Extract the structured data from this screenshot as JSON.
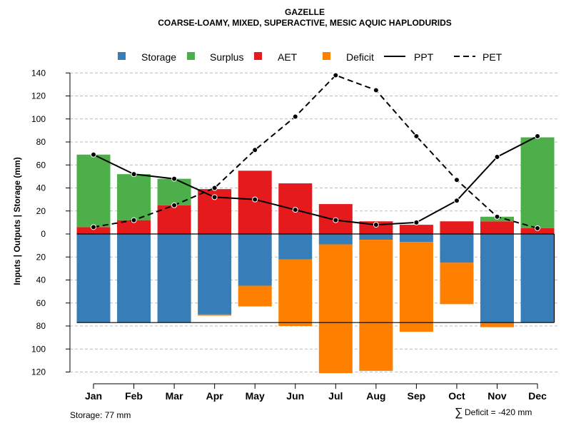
{
  "chart_data": {
    "type": "bar",
    "title": "GAZELLE",
    "subtitle": "COARSE-LOAMY, MIXED, SUPERACTIVE, MESIC AQUIC HAPLODURIDS",
    "ylabel": "Inputs | Outputs | Storage    (mm)",
    "ylim": [
      -120,
      140
    ],
    "yticks": [
      140,
      120,
      100,
      80,
      60,
      40,
      20,
      0,
      -20,
      -40,
      -60,
      -80,
      -100,
      -120
    ],
    "ytick_labels": [
      "140",
      "120",
      "100",
      "80",
      "60",
      "40",
      "20",
      "0",
      "20",
      "40",
      "60",
      "80",
      "100",
      "120"
    ],
    "categories": [
      "Jan",
      "Feb",
      "Mar",
      "Apr",
      "May",
      "Jun",
      "Jul",
      "Aug",
      "Sep",
      "Oct",
      "Nov",
      "Dec"
    ],
    "storage_capacity": 77,
    "series": [
      {
        "name": "Storage",
        "color": "#377EB8",
        "values": [
          77,
          77,
          77,
          70,
          45,
          22,
          9,
          5,
          7,
          25,
          77,
          77
        ]
      },
      {
        "name": "Surplus",
        "color": "#4DAF4A",
        "values": [
          63,
          40,
          23,
          0,
          0,
          0,
          0,
          0,
          0,
          0,
          4,
          79
        ]
      },
      {
        "name": "AET",
        "color": "#E41A1C",
        "values": [
          6,
          12,
          25,
          39,
          55,
          44,
          26,
          11,
          8,
          11,
          11,
          5
        ]
      },
      {
        "name": "Deficit",
        "color": "#FF7F00",
        "values": [
          0,
          0,
          0,
          1,
          18,
          58,
          112,
          114,
          78,
          36,
          4,
          0
        ]
      },
      {
        "name": "PPT",
        "line": "solid",
        "values": [
          69,
          52,
          48,
          32,
          30,
          21,
          12,
          8,
          10,
          29,
          67,
          85
        ]
      },
      {
        "name": "PET",
        "line": "dashed",
        "values": [
          6,
          12,
          25,
          40,
          73,
          102,
          138,
          125,
          85,
          47,
          15,
          5
        ]
      }
    ],
    "legend_position": "top",
    "grid": true
  },
  "footer": {
    "storage_note": "Storage: 77 mm",
    "deficit_symbol": "∑",
    "deficit_note": "Deficit = -420 mm"
  }
}
